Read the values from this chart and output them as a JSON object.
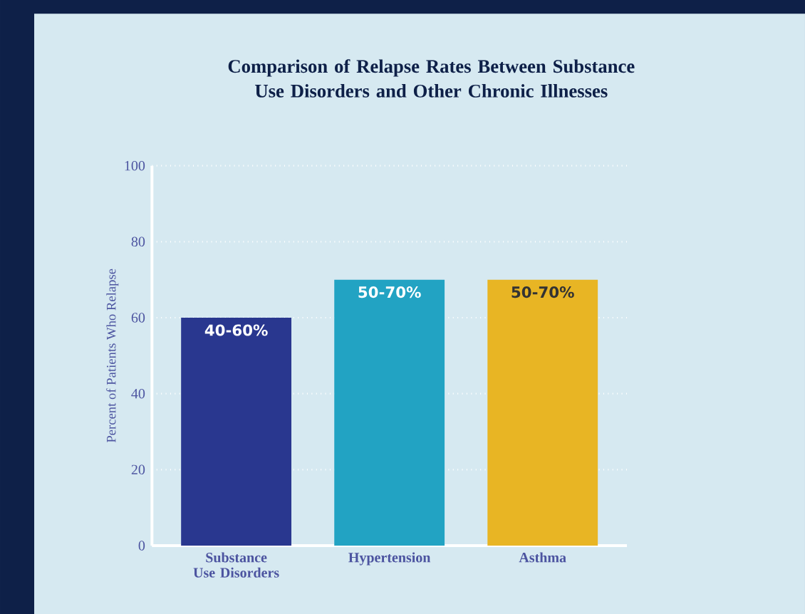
{
  "chart_data": {
    "type": "bar",
    "title": "Comparison of Relapse Rates Between Substance Use Disorders and Other Chronic Illnesses",
    "categories": [
      "Substance Use Disorders",
      "Hypertension",
      "Asthma"
    ],
    "values": [
      60,
      70,
      70
    ],
    "colors": [
      "#29378f",
      "#22a3c3",
      "#e8b524"
    ],
    "annotations": [
      {
        "text": "40-60%",
        "x": "Substance Use Disorders",
        "y": 60
      },
      {
        "text": "50-70%",
        "x": "Hypertension",
        "y": 70
      },
      {
        "text": "50-70%",
        "x": "Asthma",
        "y": 70
      }
    ],
    "ylabel": "Percent of Patients Who Relapse",
    "ylim": [
      0,
      100
    ],
    "yticks": [
      0,
      20,
      40,
      60,
      80,
      100
    ],
    "grid": "y"
  }
}
